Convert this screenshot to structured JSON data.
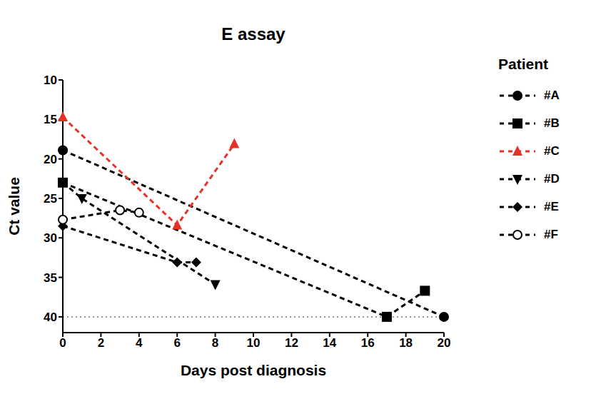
{
  "chart_data": {
    "type": "line",
    "title": "E assay",
    "x_label": "Days post diagnosis",
    "y_label": "Ct value",
    "legend_title": "Patient",
    "xlim": [
      0,
      20
    ],
    "xticks": [
      0,
      2,
      4,
      6,
      8,
      10,
      12,
      14,
      16,
      18,
      20
    ],
    "ylim": [
      42,
      10
    ],
    "yticks": [
      10,
      15,
      20,
      25,
      30,
      35,
      40
    ],
    "hlines": [
      40
    ],
    "legend": "right",
    "line_style": "dashed",
    "series": [
      {
        "name": "#A",
        "color": "#000000",
        "marker": "circle",
        "x": [
          0,
          20
        ],
        "values": [
          18.9,
          40
        ]
      },
      {
        "name": "#B",
        "color": "#000000",
        "marker": "square",
        "x": [
          0,
          17,
          19
        ],
        "values": [
          23,
          40,
          36.7
        ]
      },
      {
        "name": "#C",
        "color": "#e53228",
        "marker": "triangle",
        "x": [
          0,
          6,
          9
        ],
        "values": [
          14.7,
          28.4,
          18.1
        ]
      },
      {
        "name": "#D",
        "color": "#000000",
        "marker": "triangle-down",
        "x": [
          0,
          1,
          8
        ],
        "values": [
          23,
          25,
          35.9
        ]
      },
      {
        "name": "#E",
        "color": "#000000",
        "marker": "diamond",
        "x": [
          0,
          6,
          7
        ],
        "values": [
          28.5,
          33.1,
          33.1
        ]
      },
      {
        "name": "#F",
        "color": "#000000",
        "marker": "circle-open",
        "x": [
          0,
          3,
          4
        ],
        "values": [
          27.7,
          26.5,
          26.8
        ]
      }
    ]
  }
}
